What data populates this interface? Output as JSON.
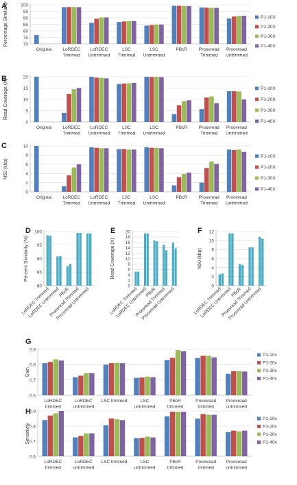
{
  "colors": {
    "c1": "#4F81BD",
    "c2": "#C0504D",
    "c3": "#9BBB59",
    "c4": "#8064A2",
    "small": "#4BACC6"
  },
  "chart_data": [
    {
      "panel": "A",
      "type": "bar",
      "ylabel": "Percentage Similarity",
      "ylim": [
        70,
        100
      ],
      "yticks": [
        70,
        75,
        80,
        85,
        90,
        95,
        100
      ],
      "categories": [
        [
          "Original"
        ],
        [
          "LoRDEC",
          "Trimmed"
        ],
        [
          "LoRDEC",
          "Untrimmed"
        ],
        [
          "LSC",
          "Trimmed"
        ],
        [
          "LSC",
          "Untrimmed"
        ],
        [
          "PBcR"
        ],
        [
          "Proovread",
          "Trimmed"
        ],
        [
          "Proovread",
          "Untrimmed"
        ]
      ],
      "series": [
        {
          "name": "P1-10X",
          "values": [
            76.8,
            98.2,
            86.2,
            86.8,
            84.0,
            99.2,
            98.0,
            89.5
          ]
        },
        {
          "name": "P1-20X",
          "values": [
            null,
            98.3,
            89.3,
            87.2,
            84.5,
            99.2,
            97.8,
            91.0
          ]
        },
        {
          "name": "P1-30X",
          "values": [
            null,
            98.3,
            90.3,
            87.5,
            84.8,
            99.1,
            97.6,
            91.5
          ]
        },
        {
          "name": "P1-40X",
          "values": [
            null,
            98.2,
            90.3,
            87.5,
            84.8,
            99.0,
            97.6,
            91.6
          ]
        }
      ]
    },
    {
      "panel": "B",
      "type": "bar",
      "ylabel": "Read Coverage (X)",
      "ylim": [
        0,
        20
      ],
      "yticks": [
        0,
        5,
        10,
        15,
        20
      ],
      "categories": [
        [
          "Original"
        ],
        [
          "LoRDEC",
          "Trimmed"
        ],
        [
          "LoRDEC",
          "Untrimmed"
        ],
        [
          "LSC",
          "Trimmed"
        ],
        [
          "LSC",
          "Untrimmed"
        ],
        [
          "PBcR"
        ],
        [
          "Proovread",
          "Trimmed"
        ],
        [
          "Proovread",
          "Untrimmed"
        ]
      ],
      "series": [
        {
          "name": "P1-10X",
          "values": [
            20.8,
            4.0,
            20.0,
            16.8,
            20.0,
            3.5,
            5.7,
            13.6
          ]
        },
        {
          "name": "P1-20X",
          "values": [
            null,
            12.4,
            19.6,
            17.0,
            19.9,
            7.4,
            10.8,
            13.6
          ]
        },
        {
          "name": "P1-30X",
          "values": [
            null,
            14.5,
            19.5,
            17.1,
            19.9,
            9.2,
            11.3,
            13.5
          ]
        },
        {
          "name": "P1-40X",
          "values": [
            null,
            15.0,
            19.3,
            17.3,
            19.8,
            9.6,
            8.3,
            9.9
          ]
        }
      ]
    },
    {
      "panel": "C",
      "type": "bar",
      "ylabel": "N50 (kbp)",
      "ylim": [
        0,
        10
      ],
      "yticks": [
        0,
        2,
        4,
        6,
        8,
        10
      ],
      "categories": [
        [
          "Original"
        ],
        [
          "LoRDEC",
          "Trimmed"
        ],
        [
          "LoRDEC",
          "Untrimmed"
        ],
        [
          "LSC",
          "Trimmed"
        ],
        [
          "LSC",
          "Untrimmed"
        ],
        [
          "PBcR"
        ],
        [
          "Proovread",
          "Trimmed"
        ],
        [
          "Proovread",
          "Untrimmed"
        ]
      ],
      "series": [
        {
          "name": "P1-10X",
          "values": [
            10.1,
            1.2,
            9.7,
            9.3,
            9.7,
            1.4,
            2.0,
            9.2
          ]
        },
        {
          "name": "P1-20X",
          "values": [
            null,
            3.6,
            9.6,
            9.3,
            9.6,
            3.2,
            5.2,
            9.1
          ]
        },
        {
          "name": "P1-30X",
          "values": [
            null,
            5.3,
            9.5,
            9.2,
            9.6,
            3.9,
            6.6,
            9.2
          ]
        },
        {
          "name": "P1-40X",
          "values": [
            null,
            6.0,
            9.5,
            9.2,
            9.5,
            4.2,
            6.1,
            8.7
          ]
        }
      ]
    },
    {
      "panel": "D",
      "type": "bar",
      "ylabel": "Percent Similarity (%)",
      "ylim": [
        80,
        100
      ],
      "yticks": [
        80,
        85,
        90,
        95,
        100
      ],
      "categories": [
        "LoRDEC Trimmed",
        "LoRDEC Untrimmed",
        "PBcR",
        "Proovread Trimmed",
        "Proovread Untrimmed"
      ],
      "series": [
        {
          "values": [
            98.6,
            90.8,
            87.2,
            99.5,
            99.3
          ]
        },
        {
          "values": [
            98.5,
            90.9,
            88.0,
            99.5,
            99.3
          ]
        }
      ]
    },
    {
      "panel": "E",
      "type": "bar",
      "ylabel": "Read Coverage (X)",
      "ylim": [
        0,
        20
      ],
      "yticks": [
        0,
        2,
        4,
        6,
        8,
        10,
        12,
        14,
        16,
        18,
        20
      ],
      "categories": [
        "LoRDEC Trimmed",
        "LoRDEC Untrimmed",
        "PBcR",
        "Proovread Trimmed",
        "Proovread Untrimmed"
      ],
      "series": [
        {
          "values": [
            5.2,
            19.3,
            16.7,
            15.1,
            15.9
          ]
        },
        {
          "values": [
            5.2,
            19.3,
            16.4,
            13.1,
            13.8
          ]
        }
      ]
    },
    {
      "panel": "F",
      "type": "bar",
      "ylabel": "N50 (kbp)",
      "ylim": [
        0,
        12
      ],
      "yticks": [
        0,
        2,
        4,
        6,
        8,
        10,
        12
      ],
      "categories": [
        "LoRDEC Trimmed",
        "LoRDEC Untrimmed",
        "PBcR",
        "Proovread Trimmed",
        "Proovread Untrimmed"
      ],
      "series": [
        {
          "values": [
            2.5,
            11.6,
            4.8,
            8.5,
            10.8
          ]
        },
        {
          "values": [
            2.7,
            11.6,
            4.6,
            8.5,
            10.4
          ]
        }
      ]
    },
    {
      "panel": "G",
      "type": "bar",
      "ylabel": "Gain",
      "ylim": [
        0.6,
        0.9
      ],
      "yticks": [
        "0.6",
        "0.7",
        "0.8",
        "0.9"
      ],
      "categories": [
        [
          "LoRDEC",
          "trimmed"
        ],
        [
          "LoRDEC",
          "untrimmed"
        ],
        [
          "LSC trimmed"
        ],
        [
          "LSC",
          "untrimmed"
        ],
        [
          "PBcR",
          "trimmed"
        ],
        [
          "Proovread",
          "trimmed"
        ],
        [
          "Proovread",
          "untrimmed"
        ]
      ],
      "series": [
        {
          "name": "P1-10x",
          "values": [
            0.81,
            0.718,
            0.8,
            0.714,
            0.83,
            0.843,
            0.74
          ]
        },
        {
          "name": "P1-20x",
          "values": [
            0.818,
            0.728,
            0.81,
            0.716,
            0.845,
            0.858,
            0.758
          ]
        },
        {
          "name": "P1-30x",
          "values": [
            0.835,
            0.745,
            0.812,
            0.722,
            0.895,
            0.858,
            0.758
          ]
        },
        {
          "name": "P1-40x",
          "values": [
            0.827,
            0.745,
            0.81,
            0.718,
            0.888,
            0.848,
            0.755
          ]
        }
      ]
    },
    {
      "panel": "H",
      "type": "bar",
      "ylabel": "Sensitivity",
      "ylim": [
        0.6,
        0.9
      ],
      "yticks": [
        "0.6",
        "0.7",
        "0.8",
        "0.9"
      ],
      "categories": [
        [
          "LoRDEC",
          "trimmed"
        ],
        [
          "LoRDEC",
          "untrimmed"
        ],
        [
          "LSC trimmed"
        ],
        [
          "LSC",
          "untrimmed"
        ],
        [
          "PBcR",
          "trimmed"
        ],
        [
          "Proovread",
          "trimmed"
        ],
        [
          "Proovread",
          "untrimmed"
        ]
      ],
      "series": [
        {
          "name": "P1-10x",
          "values": [
            0.84,
            0.725,
            0.805,
            0.72,
            0.865,
            0.85,
            0.76
          ]
        },
        {
          "name": "P1-20x",
          "values": [
            0.87,
            0.735,
            0.85,
            0.722,
            0.895,
            0.88,
            0.77
          ]
        },
        {
          "name": "P1-30x",
          "values": [
            0.885,
            0.752,
            0.845,
            0.73,
            0.895,
            0.875,
            0.765
          ]
        },
        {
          "name": "P1-40x",
          "values": [
            0.9,
            0.752,
            0.84,
            0.725,
            0.895,
            0.875,
            0.77
          ]
        }
      ]
    }
  ]
}
